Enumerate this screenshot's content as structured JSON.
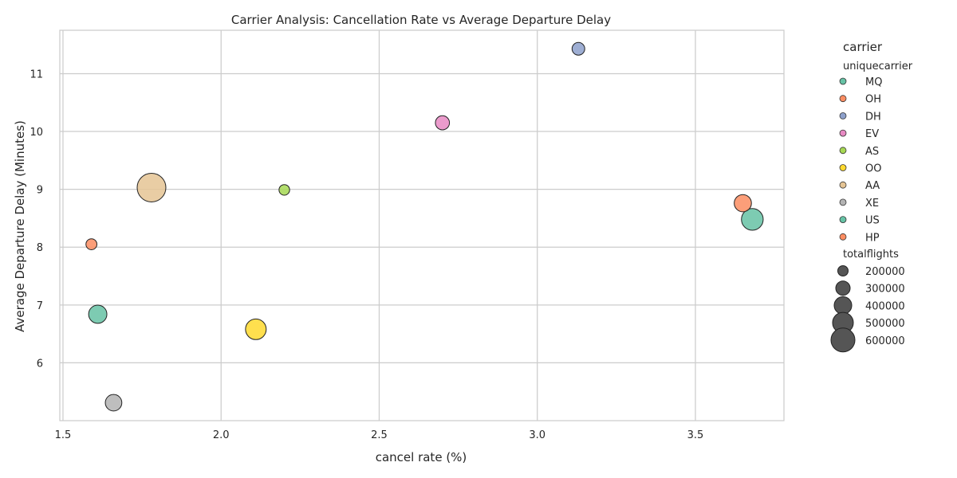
{
  "chart_data": {
    "type": "scatter",
    "title": "Carrier Analysis: Cancellation Rate vs Average Departure Delay",
    "xlabel": "cancel rate (%)",
    "ylabel": "Average Departure Delay (Minutes)",
    "xlim": [
      1.49,
      3.78
    ],
    "ylim": [
      5.0,
      11.75
    ],
    "xticks": [
      1.5,
      2.0,
      2.5,
      3.0,
      3.5
    ],
    "xtick_labels": [
      "1.5",
      "2.0",
      "2.5",
      "3.0",
      "3.5"
    ],
    "yticks": [
      6,
      7,
      8,
      9,
      10,
      11
    ],
    "ytick_labels": [
      "6",
      "7",
      "8",
      "9",
      "10",
      "11"
    ],
    "grid": true,
    "legend": {
      "placement": "outside-right",
      "title": "carrier",
      "hue_title": "uniquecarrier",
      "size_title": "totalflights",
      "size_entries": [
        {
          "label": "200000",
          "value": 200000
        },
        {
          "label": "300000",
          "value": 300000
        },
        {
          "label": "400000",
          "value": 400000
        },
        {
          "label": "500000",
          "value": 500000
        },
        {
          "label": "600000",
          "value": 600000
        }
      ]
    },
    "series": [
      {
        "name": "MQ",
        "color": "#66c2a5",
        "x": 1.61,
        "y": 6.84,
        "totalflights": 350000
      },
      {
        "name": "OH",
        "color": "#fc8d62",
        "x": 1.59,
        "y": 8.05,
        "totalflights": 140000
      },
      {
        "name": "DH",
        "color": "#8da0cb",
        "x": 3.13,
        "y": 11.43,
        "totalflights": 190000
      },
      {
        "name": "EV",
        "color": "#e78ac3",
        "x": 2.7,
        "y": 10.15,
        "totalflights": 230000
      },
      {
        "name": "AS",
        "color": "#a6d854",
        "x": 2.2,
        "y": 8.99,
        "totalflights": 130000
      },
      {
        "name": "OO",
        "color": "#ffd92f",
        "x": 2.11,
        "y": 6.58,
        "totalflights": 420000
      },
      {
        "name": "AA",
        "color": "#e5c494",
        "x": 1.78,
        "y": 9.03,
        "totalflights": 650000
      },
      {
        "name": "XE",
        "color": "#b3b3b3",
        "x": 1.66,
        "y": 5.31,
        "totalflights": 300000
      },
      {
        "name": "US",
        "color": "#66c2a5",
        "x": 3.68,
        "y": 8.48,
        "totalflights": 450000
      },
      {
        "name": "HP",
        "color": "#fc8d62",
        "x": 3.65,
        "y": 8.76,
        "totalflights": 320000
      }
    ]
  }
}
